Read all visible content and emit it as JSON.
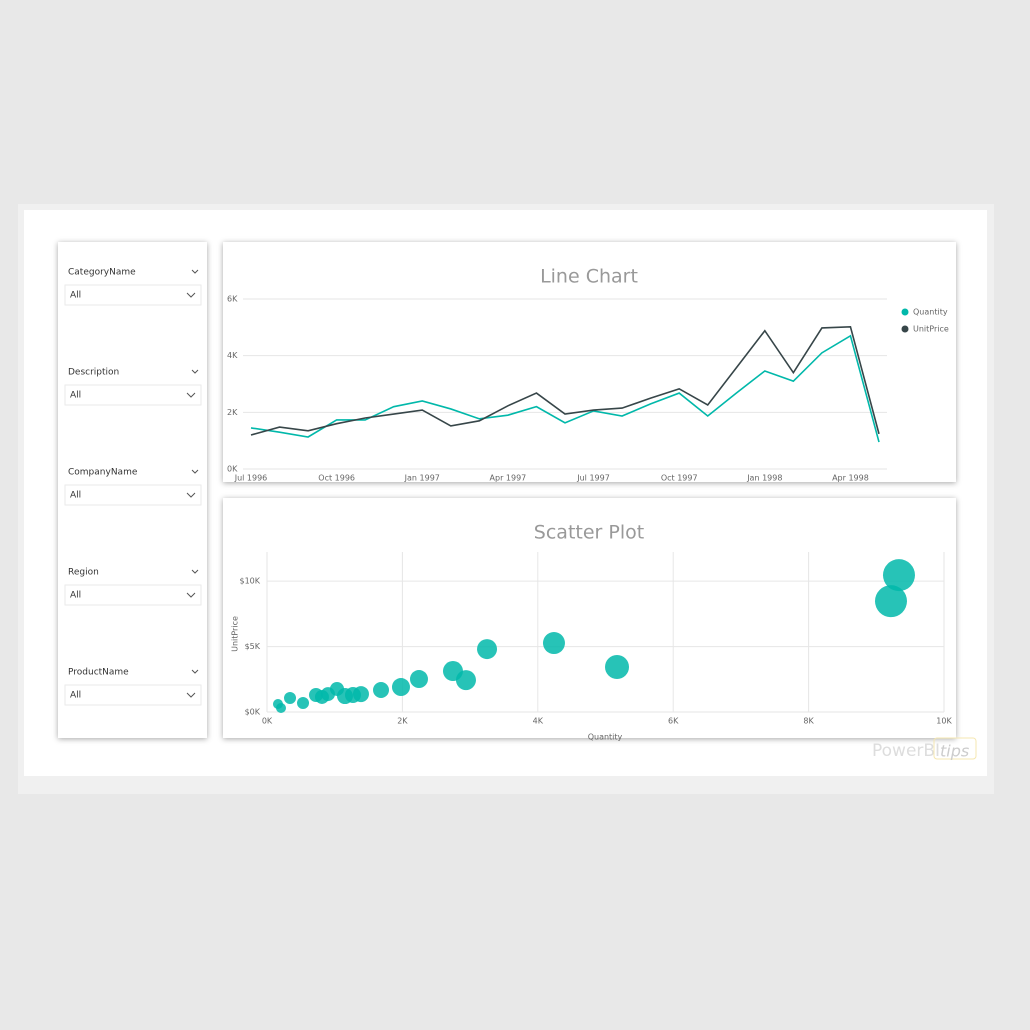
{
  "slicers": [
    {
      "title": "CategoryName",
      "selection": "All"
    },
    {
      "title": "Description",
      "selection": "All"
    },
    {
      "title": "CompanyName",
      "selection": "All"
    },
    {
      "title": "Region",
      "selection": "All"
    },
    {
      "title": "ProductName",
      "selection": "All"
    }
  ],
  "chart_data": [
    {
      "type": "line",
      "title": "Line Chart",
      "categories": [
        "Jul 1996",
        null,
        null,
        "Oct 1996",
        null,
        null,
        "Jan 1997",
        null,
        null,
        "Apr 1997",
        null,
        null,
        "Jul 1997",
        null,
        null,
        "Oct 1997",
        null,
        null,
        "Jan 1998",
        null,
        null,
        "Apr 1998",
        null
      ],
      "series": [
        {
          "name": "Quantity",
          "color": "#01b8aa",
          "values": [
            1450,
            1300,
            1130,
            1730,
            1730,
            2200,
            2400,
            2120,
            1770,
            1900,
            2200,
            1630,
            2050,
            1870,
            2300,
            2680,
            1870,
            2680,
            3460,
            3100,
            4100,
            4700,
            950
          ]
        },
        {
          "name": "UnitPrice",
          "color": "#374649",
          "values": [
            1200,
            1480,
            1350,
            1600,
            1800,
            1940,
            2080,
            1520,
            1700,
            2230,
            2680,
            1940,
            2080,
            2150,
            2500,
            2830,
            2260,
            3570,
            4880,
            3400,
            4980,
            5020,
            1240
          ]
        }
      ],
      "ylim": [
        0,
        6000
      ],
      "yticks": [
        {
          "value": 0,
          "label": "0K"
        },
        {
          "value": 2000,
          "label": "2K"
        },
        {
          "value": 4000,
          "label": "4K"
        },
        {
          "value": 6000,
          "label": "6K"
        }
      ],
      "grid": true,
      "legend": "right"
    },
    {
      "type": "scatter",
      "title": "Scatter Plot",
      "x_label": "Quantity",
      "y_label": "UnitPrice",
      "color": "#01b8aa",
      "x": [
        162,
        207,
        340,
        532,
        724,
        812,
        901,
        1034,
        1152,
        1270,
        1388,
        1684,
        1979,
        2245,
        2747,
        2939,
        3250,
        4239,
        5170,
        9217,
        9335
      ],
      "values": [
        610,
        305,
        1070,
        690,
        1300,
        1150,
        1370,
        1760,
        1220,
        1300,
        1370,
        1680,
        1910,
        2520,
        3130,
        2440,
        4810,
        5270,
        3440,
        8470,
        10460
      ],
      "sizes": [
        25,
        25,
        36,
        36,
        49,
        49,
        49,
        49,
        64,
        64,
        64,
        64,
        81,
        81,
        100,
        100,
        100,
        121,
        144,
        256,
        256
      ],
      "xlim": [
        0,
        10000
      ],
      "ylim": [
        0,
        12000
      ],
      "xticks": [
        {
          "value": 0,
          "label": "0K"
        },
        {
          "value": 2000,
          "label": "2K"
        },
        {
          "value": 4000,
          "label": "4K"
        },
        {
          "value": 6000,
          "label": "6K"
        },
        {
          "value": 8000,
          "label": "8K"
        },
        {
          "value": 10000,
          "label": "10K"
        }
      ],
      "yticks": [
        {
          "value": 0,
          "label": "$0K"
        },
        {
          "value": 5000,
          "label": "$5K"
        },
        {
          "value": 10000,
          "label": "$10K"
        }
      ],
      "grid": true
    }
  ],
  "watermark": {
    "brand": "PowerBI",
    "suffix": "tips"
  }
}
